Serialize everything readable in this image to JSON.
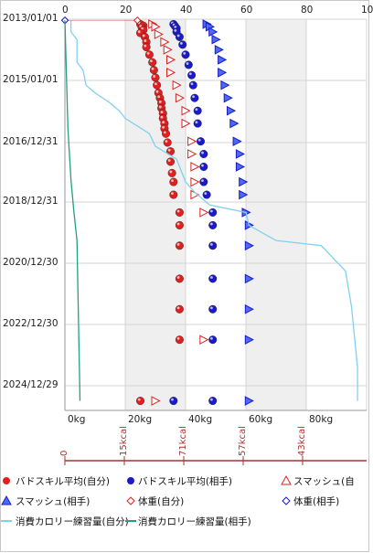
{
  "chart_data": {
    "type": "scatter",
    "orientation": "horizontal-values-vertical-time",
    "y_axis_date_labels": [
      "2013/01/01",
      "2015/01/01",
      "2016/12/31",
      "2018/12/31",
      "2020/12/30",
      "2022/12/30",
      "2024/12/29"
    ],
    "top_axis_ticks": [
      "0",
      "20",
      "40",
      "60",
      "80",
      "10"
    ],
    "bottom_axis_ticks": [
      "0kg",
      "20kg",
      "40kg",
      "60kg",
      "80kg"
    ],
    "xlim_kg": [
      0,
      100
    ],
    "calorie_axis_ticks": [
      "0",
      "15kcal",
      "71kcal",
      "57kcal",
      "43kcal"
    ],
    "calorie_axis_color": "#a83232",
    "grid": true,
    "shaded_bands_kg": [
      [
        20,
        40
      ],
      [
        60,
        80
      ]
    ],
    "series": [
      {
        "name": "バドスキル平均(自分)",
        "marker": "red-ball",
        "color": "#e02020",
        "points": [
          [
            "2013/03/01",
            25
          ],
          [
            "2013/03/20",
            26
          ],
          [
            "2013/04/10",
            25.5
          ],
          [
            "2013/05/10",
            26
          ],
          [
            "2013/06/15",
            25
          ],
          [
            "2013/08/01",
            26.5
          ],
          [
            "2013/10/01",
            27
          ],
          [
            "2013/12/01",
            27
          ],
          [
            "2014/03/01",
            28
          ],
          [
            "2014/06/01",
            29
          ],
          [
            "2014/09/01",
            29.5
          ],
          [
            "2014/12/01",
            30
          ],
          [
            "2015/03/01",
            30.5
          ],
          [
            "2015/06/01",
            31
          ],
          [
            "2015/08/01",
            31.5
          ],
          [
            "2015/10/01",
            32
          ],
          [
            "2015/12/01",
            32
          ],
          [
            "2016/02/01",
            32.5
          ],
          [
            "2016/04/01",
            32.5
          ],
          [
            "2016/06/01",
            33
          ],
          [
            "2016/08/01",
            33
          ],
          [
            "2016/10/01",
            33.5
          ],
          [
            "2017/01/15",
            34
          ],
          [
            "2017/05/01",
            35
          ],
          [
            "2017/09/01",
            35
          ],
          [
            "2018/01/15",
            35.5
          ],
          [
            "2018/05/01",
            36
          ],
          [
            "2018/10/01",
            36
          ],
          [
            "2019/05/01",
            38
          ],
          [
            "2019/10/01",
            38
          ],
          [
            "2020/06/01",
            38
          ],
          [
            "2021/07/01",
            38
          ],
          [
            "2022/07/01",
            38
          ],
          [
            "2023/07/01",
            38
          ],
          [
            "2025/07/01",
            25
          ]
        ]
      },
      {
        "name": "バドスキル平均(相手)",
        "marker": "blue-ball",
        "color": "#1a1acc",
        "points": [
          [
            "2013/03/01",
            36
          ],
          [
            "2013/03/25",
            36.5
          ],
          [
            "2013/04/20",
            37
          ],
          [
            "2013/06/01",
            37
          ],
          [
            "2013/08/01",
            38
          ],
          [
            "2013/11/01",
            39
          ],
          [
            "2014/03/01",
            40
          ],
          [
            "2014/07/01",
            41
          ],
          [
            "2014/11/01",
            42
          ],
          [
            "2015/03/01",
            42.5
          ],
          [
            "2015/08/01",
            43
          ],
          [
            "2016/01/01",
            44
          ],
          [
            "2016/06/01",
            44
          ],
          [
            "2017/01/01",
            45
          ],
          [
            "2017/06/01",
            46
          ],
          [
            "2017/11/01",
            46
          ],
          [
            "2018/05/01",
            46
          ],
          [
            "2018/10/01",
            47
          ],
          [
            "2019/05/01",
            49
          ],
          [
            "2019/10/01",
            49
          ],
          [
            "2020/06/01",
            49
          ],
          [
            "2021/07/01",
            49
          ],
          [
            "2022/07/01",
            49
          ],
          [
            "2023/07/01",
            49
          ],
          [
            "2025/07/01",
            49
          ],
          [
            "2025/07/01",
            36
          ]
        ]
      },
      {
        "name": "スマッシュ(自分)",
        "marker": "red-triangle",
        "color": "#e02020",
        "points": [
          [
            "2013/03/01",
            29
          ],
          [
            "2013/04/01",
            30
          ],
          [
            "2013/07/01",
            31
          ],
          [
            "2013/10/01",
            33
          ],
          [
            "2014/01/01",
            34
          ],
          [
            "2014/05/01",
            35
          ],
          [
            "2014/10/01",
            35
          ],
          [
            "2015/03/01",
            37
          ],
          [
            "2015/08/01",
            38
          ],
          [
            "2016/01/01",
            40
          ],
          [
            "2016/06/01",
            40
          ],
          [
            "2017/01/01",
            42
          ],
          [
            "2017/06/01",
            42
          ],
          [
            "2017/11/01",
            43
          ],
          [
            "2018/05/01",
            43
          ],
          [
            "2018/10/01",
            43
          ],
          [
            "2019/05/01",
            46
          ],
          [
            "2023/07/01",
            46
          ],
          [
            "2025/07/01",
            30
          ]
        ]
      },
      {
        "name": "スマッシュ(相手)",
        "marker": "blue-triangle",
        "color": "#1a1acc",
        "points": [
          [
            "2013/03/01",
            47
          ],
          [
            "2013/04/01",
            48
          ],
          [
            "2013/06/01",
            49
          ],
          [
            "2013/09/01",
            50
          ],
          [
            "2014/01/01",
            51
          ],
          [
            "2014/05/01",
            52
          ],
          [
            "2014/10/01",
            52
          ],
          [
            "2015/03/01",
            53
          ],
          [
            "2015/08/01",
            54
          ],
          [
            "2016/01/01",
            55
          ],
          [
            "2016/06/01",
            56
          ],
          [
            "2017/01/01",
            57
          ],
          [
            "2017/06/01",
            58
          ],
          [
            "2017/11/01",
            58
          ],
          [
            "2018/05/01",
            59
          ],
          [
            "2018/10/01",
            59
          ],
          [
            "2019/05/01",
            60
          ],
          [
            "2019/10/01",
            61
          ],
          [
            "2020/06/01",
            61
          ],
          [
            "2021/07/01",
            61
          ],
          [
            "2022/07/01",
            61
          ],
          [
            "2023/07/01",
            61
          ],
          [
            "2025/07/01",
            61
          ]
        ]
      },
      {
        "name": "体重(自分)",
        "marker": "red-diamond",
        "color": "#e02020",
        "points": [
          [
            "2013/01/15",
            0
          ],
          [
            "2013/01/15",
            24
          ]
        ]
      },
      {
        "name": "体重(相手)",
        "marker": "blue-diamond",
        "color": "#1a1acc",
        "points": [
          [
            "2013/01/15",
            0
          ]
        ]
      },
      {
        "name": "消費カロリー練習量(自分)",
        "marker": "line",
        "color": "#80d0f0",
        "points": [
          [
            "2013/01/15",
            2
          ],
          [
            "2013/06/01",
            2
          ],
          [
            "2013/09/01",
            4
          ],
          [
            "2014/06/01",
            4
          ],
          [
            "2014/09/01",
            6
          ],
          [
            "2015/03/01",
            7
          ],
          [
            "2015/06/01",
            10
          ],
          [
            "2015/10/01",
            15
          ],
          [
            "2016/01/01",
            18
          ],
          [
            "2016/04/01",
            20
          ],
          [
            "2016/10/01",
            28
          ],
          [
            "2017/03/01",
            30
          ],
          [
            "2017/08/01",
            37
          ],
          [
            "2018/05/01",
            40
          ],
          [
            "2018/09/01",
            43
          ],
          [
            "2019/02/01",
            48
          ],
          [
            "2019/05/01",
            60
          ],
          [
            "2019/10/01",
            61
          ],
          [
            "2020/04/01",
            70
          ],
          [
            "2020/06/01",
            85
          ],
          [
            "2021/04/01",
            93
          ],
          [
            "2022/06/01",
            95
          ],
          [
            "2024/06/01",
            97
          ],
          [
            "2025/07/01",
            97
          ]
        ]
      },
      {
        "name": "消費カロリー練習量(相手)",
        "marker": "line",
        "color": "#20a080",
        "points": [
          [
            "2013/01/15",
            0
          ],
          [
            "2016/08/01",
            1
          ],
          [
            "2018/04/01",
            2
          ],
          [
            "2019/05/01",
            3
          ],
          [
            "2020/04/01",
            4
          ],
          [
            "2025/07/01",
            5
          ]
        ]
      }
    ]
  },
  "legend": {
    "items": [
      {
        "label": "バドスキル平均(自分)",
        "marker": "red-ball"
      },
      {
        "label": "バドスキル平均(相手)",
        "marker": "blue-ball"
      },
      {
        "label": "スマッシュ(自",
        "marker": "red-triangle"
      },
      {
        "label": "スマッシュ(相手)",
        "marker": "blue-triangle"
      },
      {
        "label": "体重(自分)",
        "marker": "red-diamond"
      },
      {
        "label": "体重(相手)",
        "marker": "blue-diamond"
      },
      {
        "label": "消費カロリー練習量(自分)",
        "marker": "line-light"
      },
      {
        "label": "消費カロリー練習量(相手)",
        "marker": "line-teal"
      }
    ]
  }
}
